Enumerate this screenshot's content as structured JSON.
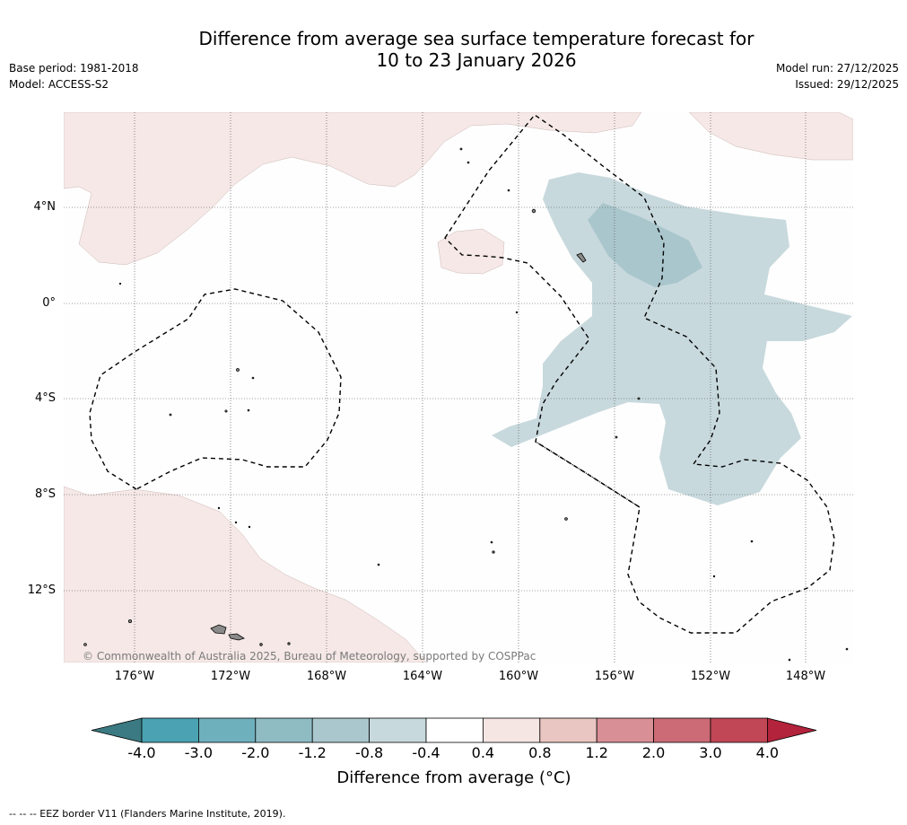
{
  "header": {
    "title_line1": "Difference from average sea surface temperature forecast for",
    "title_line2": "10 to 23 January 2026",
    "base_period": "Base period: 1981-2018",
    "model": "Model: ACCESS-S2",
    "model_run": "Model run: 27/12/2025",
    "issued": "Issued: 29/12/2025"
  },
  "map": {
    "latitude_labels": [
      "4°N",
      "0°",
      "4°S",
      "8°S",
      "12°S"
    ],
    "longitude_labels": [
      "176°W",
      "172°W",
      "168°W",
      "164°W",
      "160°W",
      "156°W",
      "152°W",
      "148°W"
    ],
    "credit": "© Commonwealth of Australia 2025, Bureau of Meteorology, supported by COSPPac",
    "colors": {
      "warm_anomaly": "#f5e8e6",
      "cool_anomaly": "#c8d9dd",
      "cooler_anomaly": "#a9c6cc",
      "land": "#8a8a8a"
    }
  },
  "legend": {
    "ticks": [
      "-4.0",
      "-3.0",
      "-2.0",
      "-1.2",
      "-0.8",
      "-0.4",
      "0.4",
      "0.8",
      "1.2",
      "2.0",
      "3.0",
      "4.0"
    ],
    "colors": [
      "#3b7a82",
      "#4aa2b2",
      "#6fb0bd",
      "#8fbcc3",
      "#aac7cd",
      "#c7d9dd",
      "#ffffff",
      "#f5e6e4",
      "#e9c6c1",
      "#d98f96",
      "#cc6a75",
      "#c14656",
      "#b3233c"
    ],
    "title": "Difference from average (°C)",
    "eez_note": "-- -- -- EEZ border V11 (Flanders Marine Institute, 2019)."
  }
}
